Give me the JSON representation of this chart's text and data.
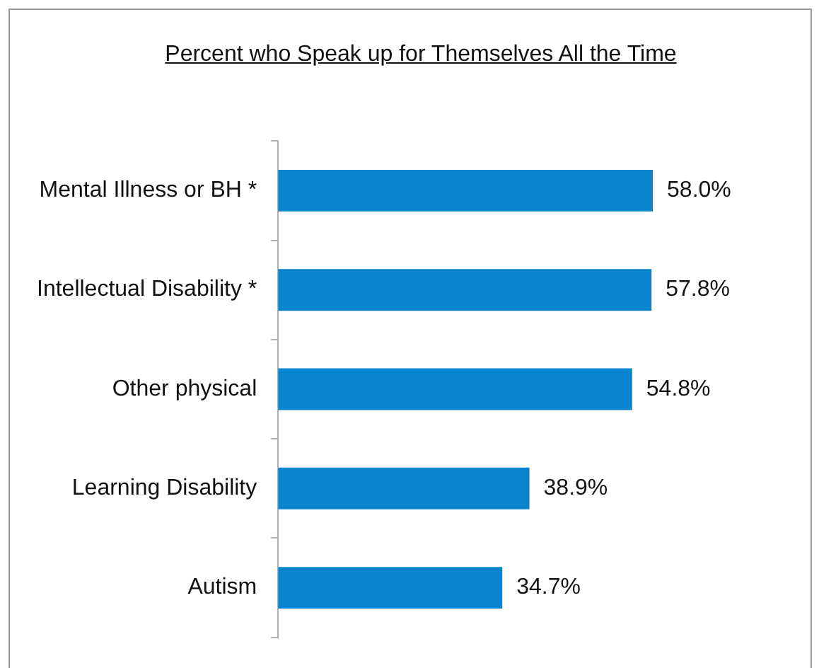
{
  "chart_data": {
    "type": "bar",
    "orientation": "horizontal",
    "title": "Percent who Speak up for Themselves All the Time",
    "categories": [
      "Mental Illness or BH *",
      "Intellectual Disability *",
      "Other physical",
      "Learning Disability",
      "Autism"
    ],
    "values": [
      58.0,
      57.8,
      54.8,
      38.9,
      34.7
    ],
    "color": "#0a84cf",
    "value_labels": [
      "58.0%",
      "57.8%",
      "54.8%",
      "38.9%",
      "34.7%"
    ],
    "legend": false
  }
}
